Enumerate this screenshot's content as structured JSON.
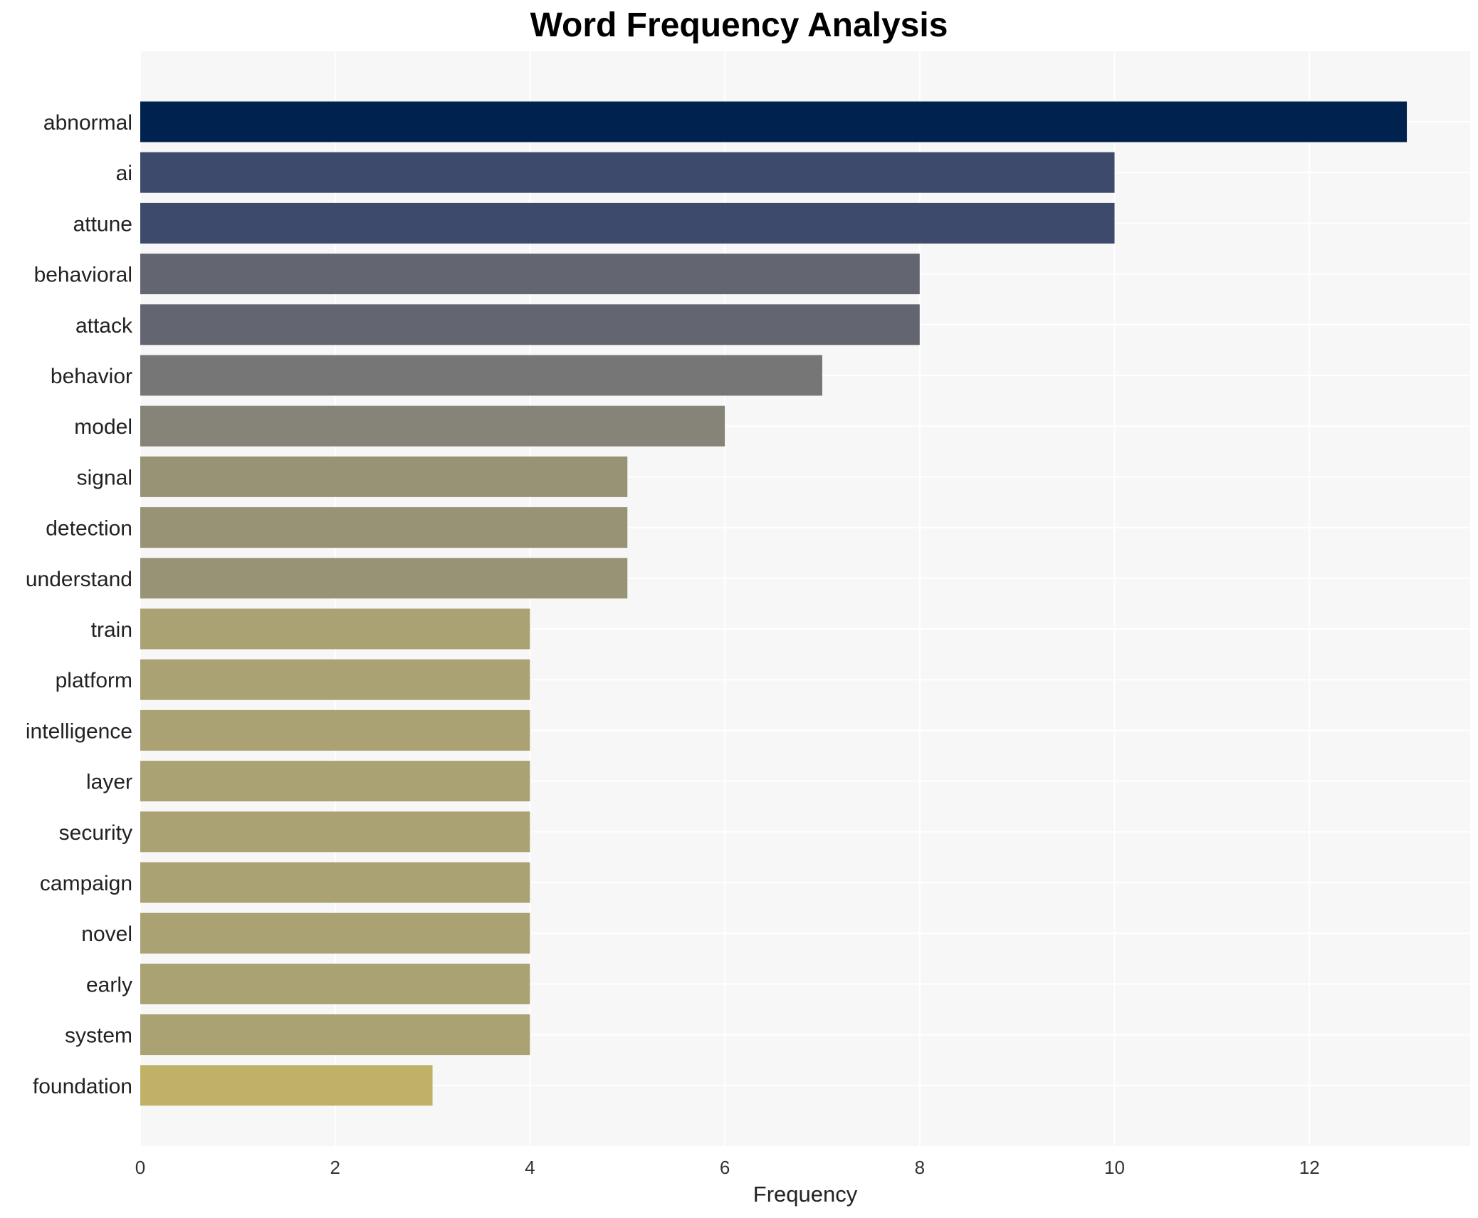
{
  "chart_data": {
    "type": "bar",
    "orientation": "horizontal",
    "title": "Word Frequency Analysis",
    "xlabel": "Frequency",
    "ylabel": "",
    "xlim": [
      0,
      13.65
    ],
    "xticks": [
      0,
      2,
      4,
      6,
      8,
      10,
      12
    ],
    "grid": true,
    "categories": [
      "abnormal",
      "ai",
      "attune",
      "behavioral",
      "attack",
      "behavior",
      "model",
      "signal",
      "detection",
      "understand",
      "train",
      "platform",
      "intelligence",
      "layer",
      "security",
      "campaign",
      "novel",
      "early",
      "system",
      "foundation"
    ],
    "values": [
      13,
      10,
      10,
      8,
      8,
      7,
      6,
      5,
      5,
      5,
      4,
      4,
      4,
      4,
      4,
      4,
      4,
      4,
      4,
      3
    ],
    "colors": [
      "#00224e",
      "#3d4a6c",
      "#3d4a6c",
      "#636570",
      "#636570",
      "#767676",
      "#868379",
      "#989375",
      "#989375",
      "#989375",
      "#aba274",
      "#aba274",
      "#aba274",
      "#aba274",
      "#aba274",
      "#aba274",
      "#aba274",
      "#aba274",
      "#aba274",
      "#c0b068"
    ],
    "plot_background": "#f7f7f7",
    "grid_color": "#ffffff"
  }
}
